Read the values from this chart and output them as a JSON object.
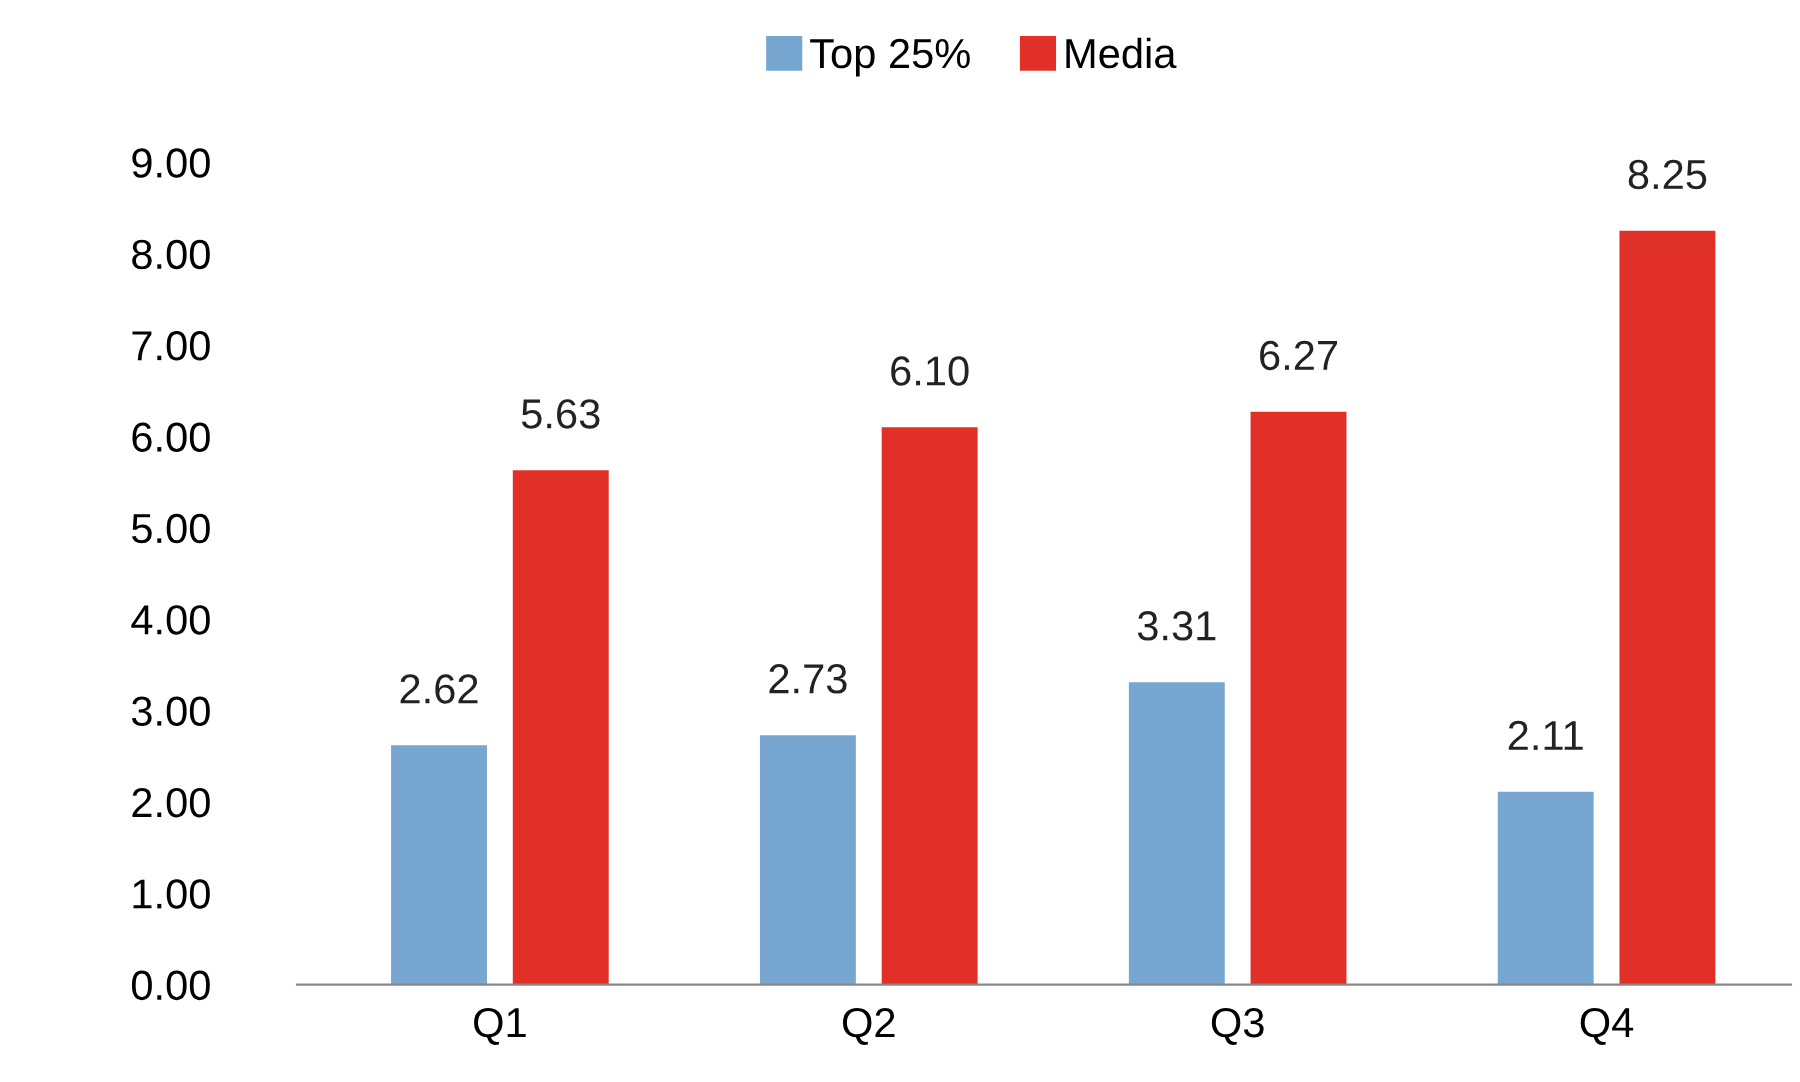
{
  "chart_data": {
    "type": "bar",
    "categories": [
      "Q1",
      "Q2",
      "Q3",
      "Q4"
    ],
    "series": [
      {
        "name": "Top 25%",
        "color": "#77a6d0",
        "values": [
          2.62,
          2.73,
          3.31,
          2.11
        ],
        "value_labels": [
          "2.62",
          "2.73",
          "3.31",
          "2.11"
        ]
      },
      {
        "name": "Media",
        "color": "#e03027",
        "values": [
          5.63,
          6.1,
          6.27,
          8.25
        ],
        "value_labels": [
          "5.63",
          "6.10",
          "6.27",
          "8.25"
        ]
      }
    ],
    "ylim": [
      0,
      9
    ],
    "yticks": [
      {
        "value": 0,
        "label": "0.00"
      },
      {
        "value": 1,
        "label": "1.00"
      },
      {
        "value": 2,
        "label": "2.00"
      },
      {
        "value": 3,
        "label": "3.00"
      },
      {
        "value": 4,
        "label": "4.00"
      },
      {
        "value": 5,
        "label": "5.00"
      },
      {
        "value": 6,
        "label": "6.00"
      },
      {
        "value": 7,
        "label": "7.00"
      },
      {
        "value": 8,
        "label": "8.00"
      },
      {
        "value": 9,
        "label": "9.00"
      }
    ],
    "grid": false,
    "legend": "top"
  }
}
